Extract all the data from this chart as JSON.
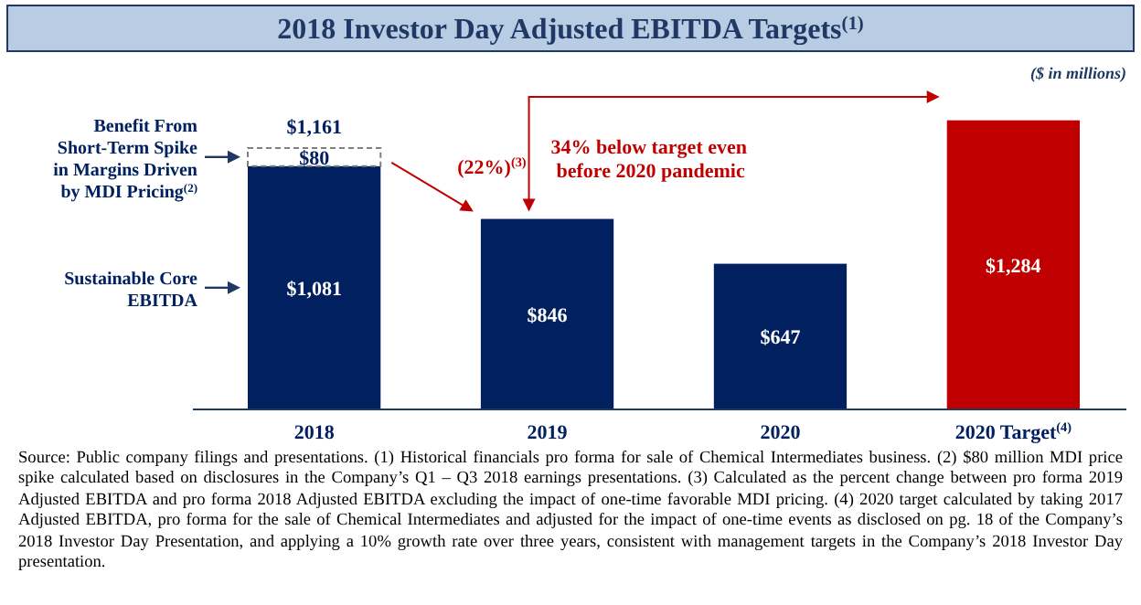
{
  "chart_data": {
    "type": "bar",
    "title": "2018 Investor Day Adjusted EBITDA Targets$^{(1)}$",
    "subtitle": "($ in millions)",
    "stacked": true,
    "legend": "left",
    "categories": [
      "2018",
      "2019",
      "2020",
      "2020 Target$^{(4)}$"
    ],
    "series": [
      {
        "name": "Sustainable Core EBITDA",
        "color": "#002060",
        "colors": [
          "#002060",
          "#002060",
          "#002060",
          "#c00000"
        ],
        "values": [
          1081,
          846,
          647,
          1284
        ],
        "value_labels": [
          "$1,081",
          "$846",
          "$647",
          "$1,284"
        ]
      },
      {
        "name": "Benefit From Short-Term Spike in Margins Driven by MDI Pricing$^{(2)}$",
        "color": "#ffffff",
        "values": [
          80,
          null,
          null,
          null
        ],
        "value_labels": [
          "$80",
          null,
          null,
          null
        ]
      }
    ],
    "totals": [
      "$1,161",
      null,
      null,
      null
    ],
    "annotations": [
      "(22%)$^{(3)}$",
      "34% below target even before 2020 pandemic",
      "Source: Public company filings and presentations. (1) Historical financials pro forma for sale of Chemical Intermediates business. (2) $80 million MDI price spike calculated based on disclosures in the Company’s Q1 – Q3 2018 earnings presentations. (3) Calculated as the percent change between pro forma 2019 Adjusted EBITDA and pro forma 2018 Adjusted EBITDA excluding the impact of one-time favorable MDI pricing. (4) 2020 target calculated by taking 2017 Adjusted EBITDA, pro forma for the sale of Chemical Intermediates and adjusted for the impact of one-time events as disclosed on pg. 18 of the Company’s 2018 Investor Day Presentation, and applying a 10% growth rate over three years, consistent with management targets in the Company’s 2018 Investor Day presentation."
    ]
  }
}
